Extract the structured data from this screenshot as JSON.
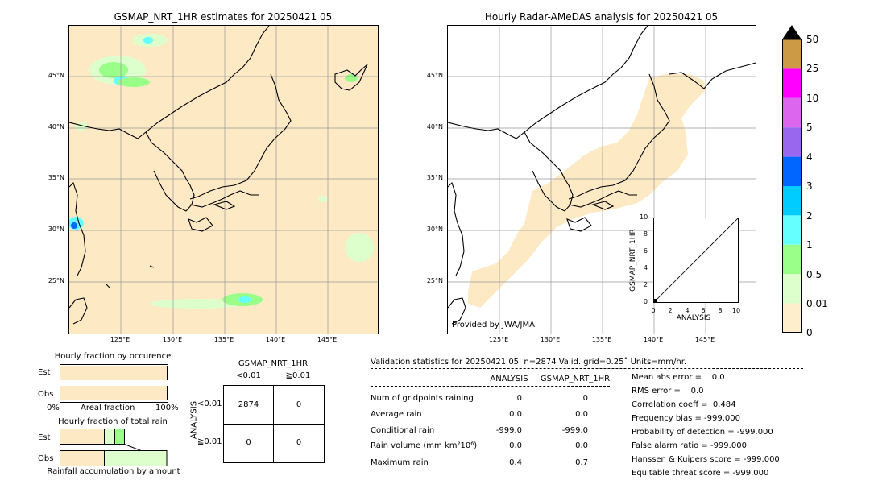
{
  "left_map": {
    "title": "GSMAP_NRT_1HR estimates for 20250421 05"
  },
  "right_map": {
    "title": "Hourly Radar-AMeDAS analysis for 20250421 05",
    "credit": "Provided by JWA/JMA"
  },
  "lat_labels": [
    "45°N",
    "40°N",
    "35°N",
    "30°N",
    "25°N"
  ],
  "lon_labels": [
    "125°E",
    "130°E",
    "135°E",
    "140°E",
    "145°E"
  ],
  "colorbar": {
    "labels": [
      "50",
      "25",
      "10",
      "5",
      "4",
      "3",
      "2",
      "1",
      "0.5",
      "0.01",
      "0"
    ],
    "colors": [
      "#cc9944",
      "#ff00ff",
      "#dd66ee",
      "#9966ee",
      "#0066ff",
      "#00ccff",
      "#66ffff",
      "#99ff88",
      "#ddffcc",
      "#ffeecc"
    ],
    "over_color": "#000000"
  },
  "scatter_inset": {
    "ylabel": "GSMAP_NRT_1HR",
    "xlabel": "ANALYSIS",
    "ticks": [
      "0",
      "2",
      "4",
      "6",
      "8",
      "10"
    ]
  },
  "occurrence": {
    "title": "Hourly fraction by occurence",
    "rows": [
      "Est",
      "Obs"
    ],
    "axis_left": "0%",
    "axis_mid": "Areal fraction",
    "axis_right": "100%",
    "est_fraction": 0.99,
    "obs_fraction": 0.99
  },
  "total_rain": {
    "title": "Hourly fraction of total rain",
    "rows": [
      "Est",
      "Obs"
    ],
    "footer": "Rainfall accumulation by amount"
  },
  "contingency": {
    "title": "GSMAP_NRT_1HR",
    "col_headers": [
      "<0.01",
      "≧0.01"
    ],
    "row_axis": "ANALYSIS",
    "row_headers": [
      "<0.01",
      "≧0.01"
    ],
    "cells": [
      [
        "2874",
        "0"
      ],
      [
        "0",
        "0"
      ]
    ]
  },
  "validation": {
    "header": "Validation statistics for 20250421 05  n=2874 Valid. grid=0.25˚ Units=mm/hr.",
    "col_analysis": "ANALYSIS",
    "col_gsmap": "GSMAP_NRT_1HR",
    "rows": [
      {
        "label": "Num of gridpoints raining",
        "analysis": "0",
        "gsmap": "0"
      },
      {
        "label": "Average rain",
        "analysis": "0.0",
        "gsmap": "0.0"
      },
      {
        "label": "Conditional rain",
        "analysis": "-999.0",
        "gsmap": "-999.0"
      },
      {
        "label": "Rain volume (mm km²10⁶)",
        "analysis": "0.0",
        "gsmap": "0.0"
      },
      {
        "label": "Maximum rain",
        "analysis": "0.4",
        "gsmap": "0.7"
      }
    ],
    "scores": [
      "Mean abs error =    0.0",
      "RMS error =    0.0",
      "Correlation coeff =  0.484",
      "Frequency bias = -999.000",
      "Probability of detection = -999.000",
      "False alarm ratio = -999.000",
      "Hanssen & Kuipers score = -999.000",
      "Equitable threat score = -999.000"
    ]
  }
}
